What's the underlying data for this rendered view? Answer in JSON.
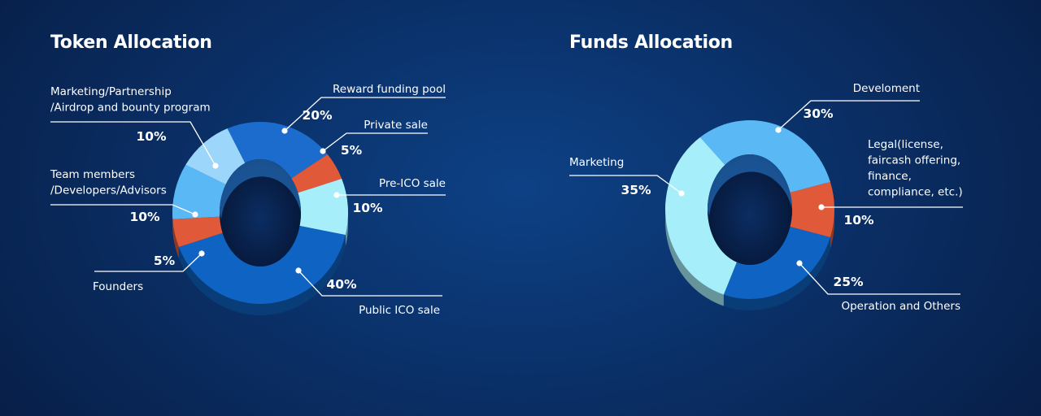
{
  "chart_data": [
    {
      "type": "pie",
      "title": "Token Allocation",
      "series": [
        {
          "label": "Reward funding pool",
          "value": 20,
          "display": "20%",
          "color": "#1c6ccd"
        },
        {
          "label": "Private sale",
          "value": 5,
          "display": "5%",
          "color": "#e05a3a"
        },
        {
          "label": "Pre-ICO sale",
          "value": 10,
          "display": "10%",
          "color": "#a6eefa"
        },
        {
          "label": "Public ICO sale",
          "value": 40,
          "display": "40%",
          "color": "#0f63c2"
        },
        {
          "label": "Founders",
          "value": 5,
          "display": "5%",
          "color": "#e05a3a"
        },
        {
          "label": "Team members\n/Developers/Advisors",
          "value": 10,
          "display": "10%",
          "color": "#5ab8f5"
        },
        {
          "label": "Marketing/Partnership\n/Airdrop and bounty program",
          "value": 10,
          "display": "10%",
          "color": "#9dd6fb"
        }
      ]
    },
    {
      "type": "pie",
      "title": "Funds Allocation",
      "series": [
        {
          "label": "Develoment",
          "value": 30,
          "display": "30%",
          "color": "#5ab8f5"
        },
        {
          "label": "Legal(license,\nfaircash offering,\nfinance,\ncompliance, etc.)",
          "value": 10,
          "display": "10%",
          "color": "#e05a3a"
        },
        {
          "label": "Operation and Others",
          "value": 25,
          "display": "25%",
          "color": "#0f63c2"
        },
        {
          "label": "Marketing",
          "value": 35,
          "display": "35%",
          "color": "#a6eefa"
        }
      ]
    }
  ]
}
